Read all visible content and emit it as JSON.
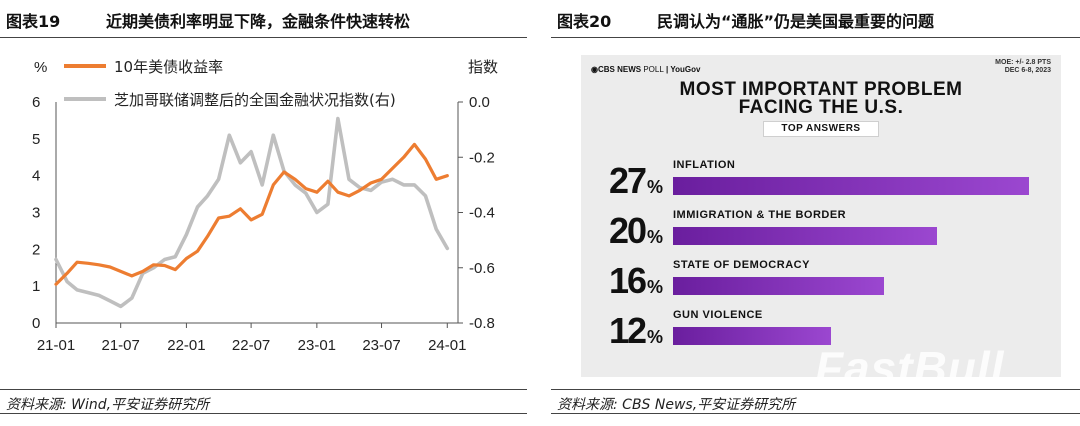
{
  "left": {
    "fig_no": "图表19",
    "title": "近期美债利率明显下降，金融条件快速转松",
    "source": "资料来源: Wind,平安证券研究所",
    "units": {
      "left": "%",
      "right": "指数"
    },
    "ticks": {
      "left_y": [
        "6",
        "5",
        "4",
        "3",
        "2",
        "1",
        "0"
      ],
      "right_y": [
        "0.0",
        "-0.2",
        "-0.4",
        "-0.6",
        "-0.8"
      ],
      "x": [
        "21-01",
        "21-07",
        "22-01",
        "22-07",
        "23-01",
        "23-07",
        "24-01"
      ]
    },
    "colors": {
      "treasury": "#ed7d31",
      "fci": "#bfbfbf"
    }
  },
  "chart_data": {
    "type": "line",
    "xlabel": "",
    "ylabel": "%",
    "ylabel_right": "指数",
    "ylim": [
      0,
      6
    ],
    "ylim_right": [
      -0.8,
      0.0
    ],
    "x_ticks": [
      "21-01",
      "21-07",
      "22-01",
      "22-07",
      "23-01",
      "23-07",
      "24-01"
    ],
    "legend_position": "top-left",
    "series": [
      {
        "name": "10年美债收益率",
        "axis": "left",
        "color": "#ed7d31",
        "x": [
          "2021-01-01",
          "2021-02-01",
          "2021-03-01",
          "2021-04-01",
          "2021-05-01",
          "2021-06-01",
          "2021-07-01",
          "2021-08-01",
          "2021-09-01",
          "2021-10-01",
          "2021-11-01",
          "2021-12-01",
          "2022-01-01",
          "2022-02-01",
          "2022-03-01",
          "2022-04-01",
          "2022-05-01",
          "2022-06-01",
          "2022-07-01",
          "2022-08-01",
          "2022-09-01",
          "2022-10-01",
          "2022-11-01",
          "2022-12-01",
          "2023-01-01",
          "2023-02-01",
          "2023-03-01",
          "2023-04-01",
          "2023-05-01",
          "2023-06-01",
          "2023-07-01",
          "2023-08-01",
          "2023-09-01",
          "2023-10-01",
          "2023-11-01",
          "2023-12-01",
          "2024-01-01"
        ],
        "y": [
          1.05,
          1.35,
          1.65,
          1.62,
          1.58,
          1.52,
          1.4,
          1.28,
          1.4,
          1.58,
          1.56,
          1.45,
          1.75,
          1.95,
          2.35,
          2.85,
          2.9,
          3.1,
          2.8,
          2.95,
          3.75,
          4.1,
          3.9,
          3.65,
          3.55,
          3.85,
          3.55,
          3.45,
          3.6,
          3.8,
          3.9,
          4.2,
          4.5,
          4.85,
          4.45,
          3.9,
          4.0
        ]
      },
      {
        "name": "芝加哥联储调整后的全国金融状况指数(右)",
        "axis": "right",
        "color": "#bfbfbf",
        "x": [
          "2021-01-01",
          "2021-02-01",
          "2021-03-01",
          "2021-04-01",
          "2021-05-01",
          "2021-06-01",
          "2021-07-01",
          "2021-08-01",
          "2021-09-01",
          "2021-10-01",
          "2021-11-01",
          "2021-12-01",
          "2022-01-01",
          "2022-02-01",
          "2022-03-01",
          "2022-04-01",
          "2022-05-01",
          "2022-06-01",
          "2022-07-01",
          "2022-08-01",
          "2022-09-01",
          "2022-10-01",
          "2022-11-01",
          "2022-12-01",
          "2023-01-01",
          "2023-02-01",
          "2023-03-01",
          "2023-04-01",
          "2023-05-01",
          "2023-06-01",
          "2023-07-01",
          "2023-08-01",
          "2023-09-01",
          "2023-10-01",
          "2023-11-01",
          "2023-12-01",
          "2024-01-01"
        ],
        "y": [
          -0.57,
          -0.65,
          -0.68,
          -0.69,
          -0.7,
          -0.72,
          -0.74,
          -0.71,
          -0.62,
          -0.6,
          -0.57,
          -0.56,
          -0.48,
          -0.38,
          -0.34,
          -0.28,
          -0.12,
          -0.22,
          -0.18,
          -0.3,
          -0.12,
          -0.25,
          -0.3,
          -0.33,
          -0.4,
          -0.37,
          -0.06,
          -0.28,
          -0.31,
          -0.32,
          -0.29,
          -0.28,
          -0.3,
          -0.3,
          -0.34,
          -0.46,
          -0.53
        ]
      }
    ]
  },
  "right": {
    "fig_no": "图表20",
    "title": "民调认为“通胀”仍是美国最重要的问题",
    "source": "资料来源: CBS News,平安证券研究所",
    "logo_main": "CBS NEWS",
    "logo_poll": "POLL",
    "logo_partner": "YouGov",
    "moe": "MOE: +/- 2.8 PTS",
    "dates": "DEC 6-8, 2023",
    "headline_1": "MOST IMPORTANT PROBLEM",
    "headline_2": "FACING THE U.S.",
    "subheading": "TOP ANSWERS",
    "answers": [
      {
        "pct": "27",
        "label": "INFLATION",
        "value": 27
      },
      {
        "pct": "20",
        "label": "IMMIGRATION & THE BORDER",
        "value": 20
      },
      {
        "pct": "16",
        "label": "STATE OF DEMOCRACY",
        "value": 16
      },
      {
        "pct": "12",
        "label": "GUN VIOLENCE",
        "value": 12
      }
    ],
    "pct_sign": "%",
    "watermark": "FastBull"
  }
}
